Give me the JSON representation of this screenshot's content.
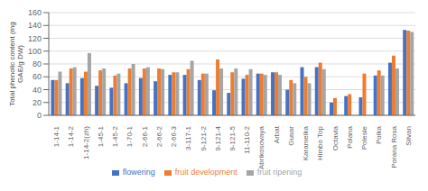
{
  "chart_data": {
    "type": "bar",
    "ylabel": "Total phenolic content (mg\nGAE/g DW)",
    "categories": [
      "1-14-1",
      "1-14-2",
      "1-14-2(zh)",
      "1-45-1",
      "1-45-2",
      "1-70-1",
      "2-66-1",
      "2-66-2",
      "2-66-3",
      "3-117-1",
      "9-121-2",
      "9-121-4",
      "9-121-5",
      "11-110-2",
      "Abrikosovaya",
      "Arbat",
      "Gusar",
      "Karamelka",
      "Himbo Top",
      "Octavia",
      "Polana",
      "Polesie",
      "Polka",
      "Porana Rosa",
      "Silvan"
    ],
    "series": [
      {
        "name": "flowering",
        "color": "#4472C4",
        "values": [
          55,
          50,
          58,
          46,
          43,
          50,
          58,
          53,
          63,
          63,
          55,
          39,
          35,
          57,
          65,
          67,
          40,
          75,
          75,
          20,
          30,
          28,
          62,
          82,
          133
        ]
      },
      {
        "name": "fruit development",
        "color": "#ED7D31",
        "values": [
          55,
          73,
          68,
          70,
          62,
          73,
          73,
          73,
          67,
          72,
          65,
          87,
          67,
          63,
          65,
          67,
          55,
          60,
          82,
          27,
          33,
          65,
          70,
          93,
          132
        ]
      },
      {
        "name": "fruit ripening",
        "color": "#A5A5A5",
        "values": [
          68,
          75,
          97,
          73,
          65,
          80,
          75,
          72,
          67,
          85,
          65,
          73,
          73,
          72,
          63,
          63,
          50,
          50,
          72,
          0,
          0,
          0,
          62,
          73,
          130
        ]
      }
    ],
    "ylim": [
      0,
      160
    ],
    "yticks": [
      0,
      20,
      40,
      60,
      80,
      100,
      120,
      140,
      160
    ],
    "grid": true,
    "legend": "bottom"
  }
}
